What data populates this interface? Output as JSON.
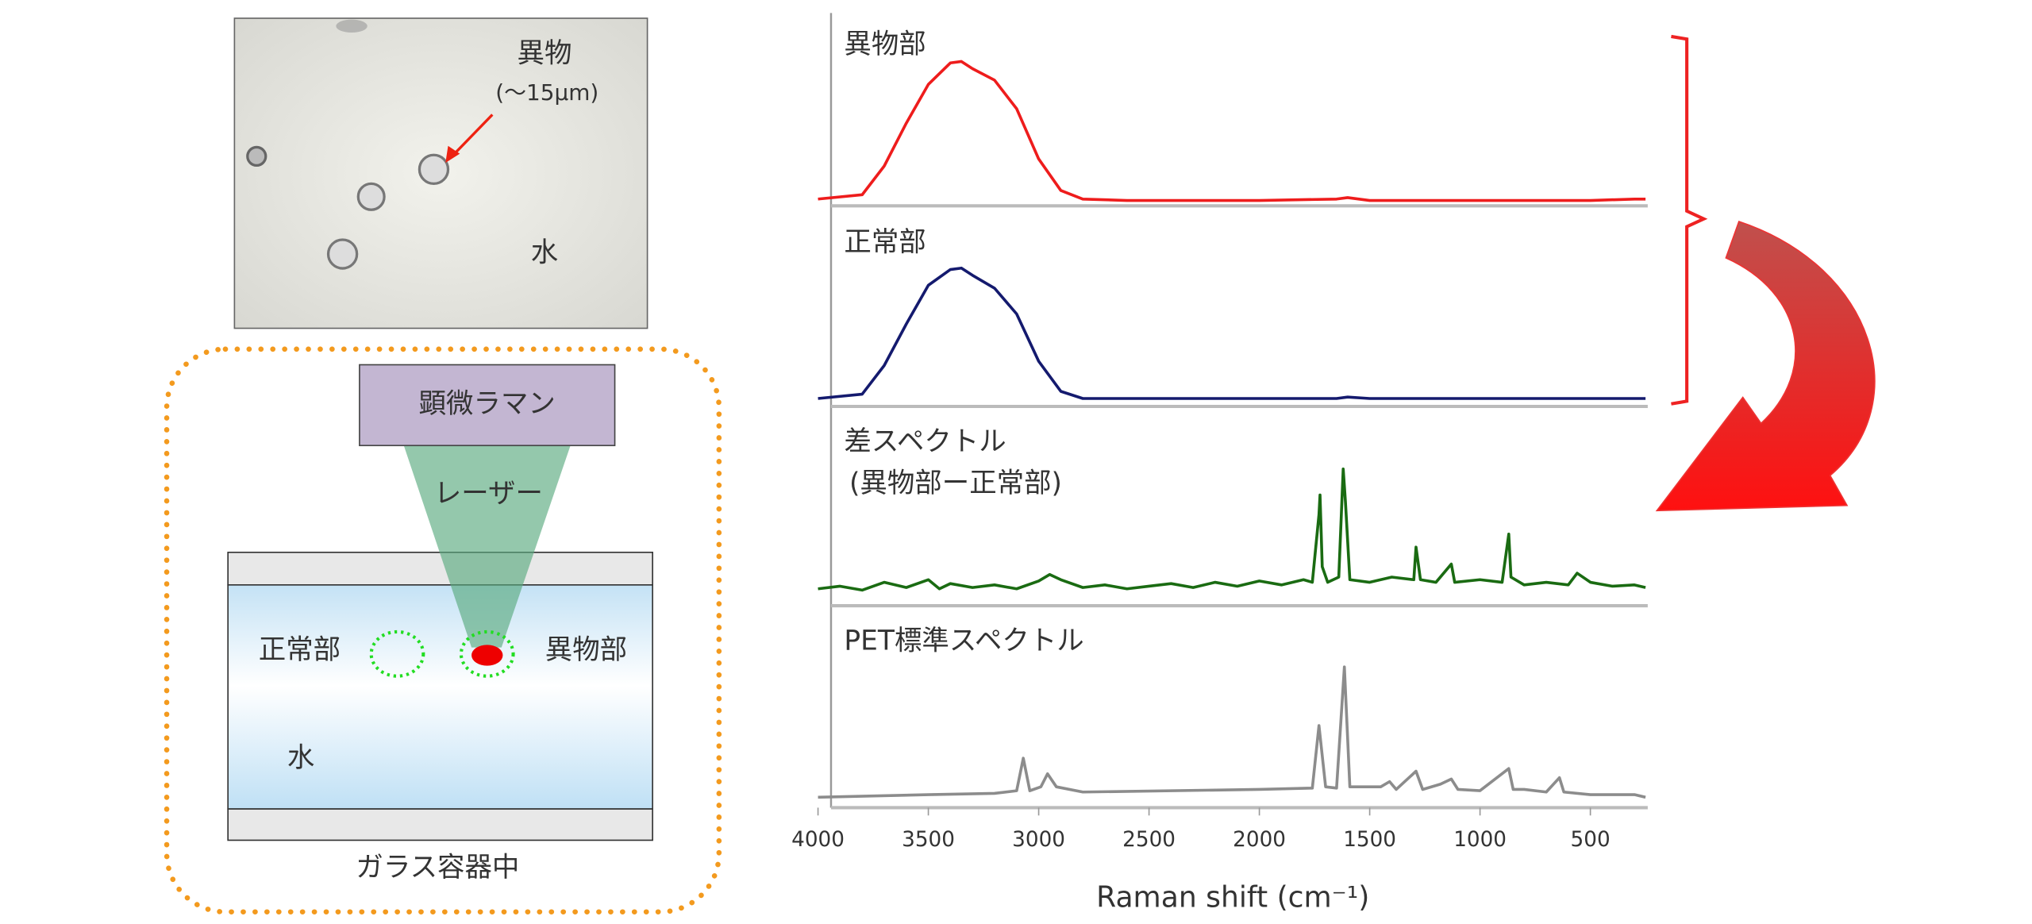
{
  "image": {
    "label": "異物",
    "size": "(～15μm)",
    "medium": "水"
  },
  "diagram": {
    "instrument": "顕微ラマン",
    "beam": "レーザー",
    "normal": "正常部",
    "foreign": "異物部",
    "medium": "水",
    "container": "ガラス容器中"
  },
  "chart_data": {
    "type": "line",
    "xlabel": "Raman shift (cm⁻¹)",
    "xlim": [
      4000,
      240
    ],
    "xticks": [
      4000,
      3500,
      3000,
      2500,
      2000,
      1500,
      1000,
      500
    ],
    "ylim": [
      0,
      100
    ],
    "series": [
      {
        "name": "異物部",
        "color": "#ee1c1c",
        "x": [
          4000,
          3800,
          3700,
          3600,
          3500,
          3400,
          3350,
          3300,
          3200,
          3100,
          3000,
          2900,
          2800,
          2600,
          2000,
          1650,
          1600,
          1500,
          1000,
          500,
          300,
          250
        ],
        "values": [
          2,
          5,
          25,
          55,
          82,
          97,
          98,
          93,
          85,
          65,
          30,
          8,
          2,
          1,
          1,
          2,
          3,
          1,
          1,
          1,
          2,
          2
        ]
      },
      {
        "name": "正常部",
        "color": "#141a6e",
        "x": [
          4000,
          3800,
          3700,
          3600,
          3500,
          3400,
          3350,
          3300,
          3200,
          3100,
          3000,
          2900,
          2800,
          2600,
          2000,
          1650,
          1600,
          1500,
          1000,
          500,
          300,
          250
        ],
        "values": [
          1,
          4,
          24,
          53,
          80,
          91,
          92,
          87,
          78,
          60,
          27,
          6,
          1,
          1,
          1,
          1,
          2,
          1,
          1,
          1,
          1,
          1
        ]
      },
      {
        "name": "差スペクトル",
        "note": "(異物部ー正常部)",
        "color": "#1a6b12",
        "x": [
          4000,
          3900,
          3800,
          3700,
          3600,
          3500,
          3450,
          3400,
          3300,
          3200,
          3100,
          3000,
          2950,
          2900,
          2800,
          2700,
          2600,
          2500,
          2400,
          2300,
          2200,
          2100,
          2000,
          1900,
          1800,
          1760,
          1730,
          1725,
          1715,
          1690,
          1640,
          1620,
          1610,
          1590,
          1500,
          1400,
          1300,
          1290,
          1270,
          1200,
          1130,
          1115,
          1000,
          900,
          870,
          860,
          800,
          700,
          600,
          560,
          500,
          400,
          300,
          250
        ],
        "values": [
          3,
          5,
          2,
          8,
          4,
          10,
          3,
          7,
          4,
          6,
          3,
          9,
          14,
          10,
          4,
          6,
          3,
          5,
          7,
          4,
          8,
          5,
          9,
          6,
          10,
          8,
          60,
          75,
          20,
          8,
          12,
          95,
          70,
          10,
          8,
          12,
          10,
          35,
          10,
          8,
          22,
          8,
          10,
          8,
          45,
          12,
          6,
          8,
          6,
          15,
          8,
          5,
          6,
          4
        ]
      },
      {
        "name": "PET標準スペクトル",
        "color": "#8c8c8c",
        "x": [
          4000,
          3500,
          3200,
          3100,
          3070,
          3040,
          2990,
          2960,
          2920,
          2800,
          2000,
          1760,
          1730,
          1700,
          1650,
          1615,
          1590,
          1450,
          1410,
          1380,
          1290,
          1260,
          1180,
          1130,
          1100,
          1000,
          870,
          850,
          800,
          700,
          640,
          620,
          500,
          300,
          250
        ],
        "values": [
          0,
          2,
          3,
          5,
          30,
          5,
          8,
          18,
          8,
          4,
          6,
          7,
          55,
          8,
          7,
          100,
          8,
          8,
          12,
          6,
          20,
          6,
          10,
          14,
          6,
          5,
          22,
          6,
          6,
          4,
          15,
          4,
          2,
          2,
          0
        ]
      }
    ]
  }
}
